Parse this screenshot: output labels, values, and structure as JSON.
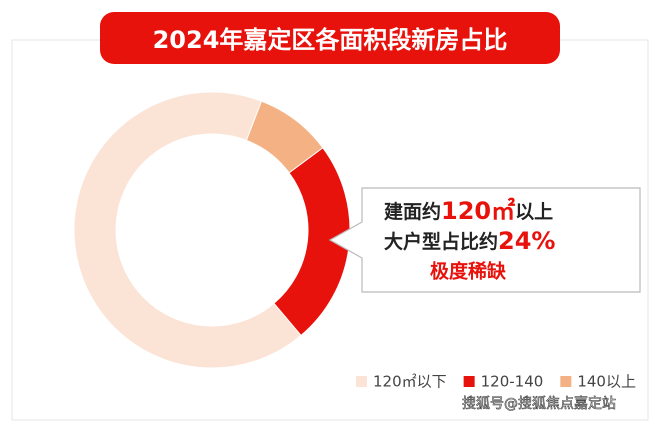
{
  "chart_data": {
    "type": "donut",
    "title": "2024年嘉定区各面积段新房占比",
    "categories": [
      "120㎡以下",
      "120-140",
      "140以上"
    ],
    "values": [
      67,
      24,
      9
    ],
    "colors": [
      "#fbe4d6",
      "#e8120c",
      "#f4b183"
    ],
    "callout": {
      "line1": [
        "建面约",
        "120㎡",
        "以上"
      ],
      "line2": [
        "大户型占比约",
        "24%"
      ],
      "line3": "极度稀缺"
    },
    "watermark": "搜狐号@搜狐焦点嘉定站"
  }
}
